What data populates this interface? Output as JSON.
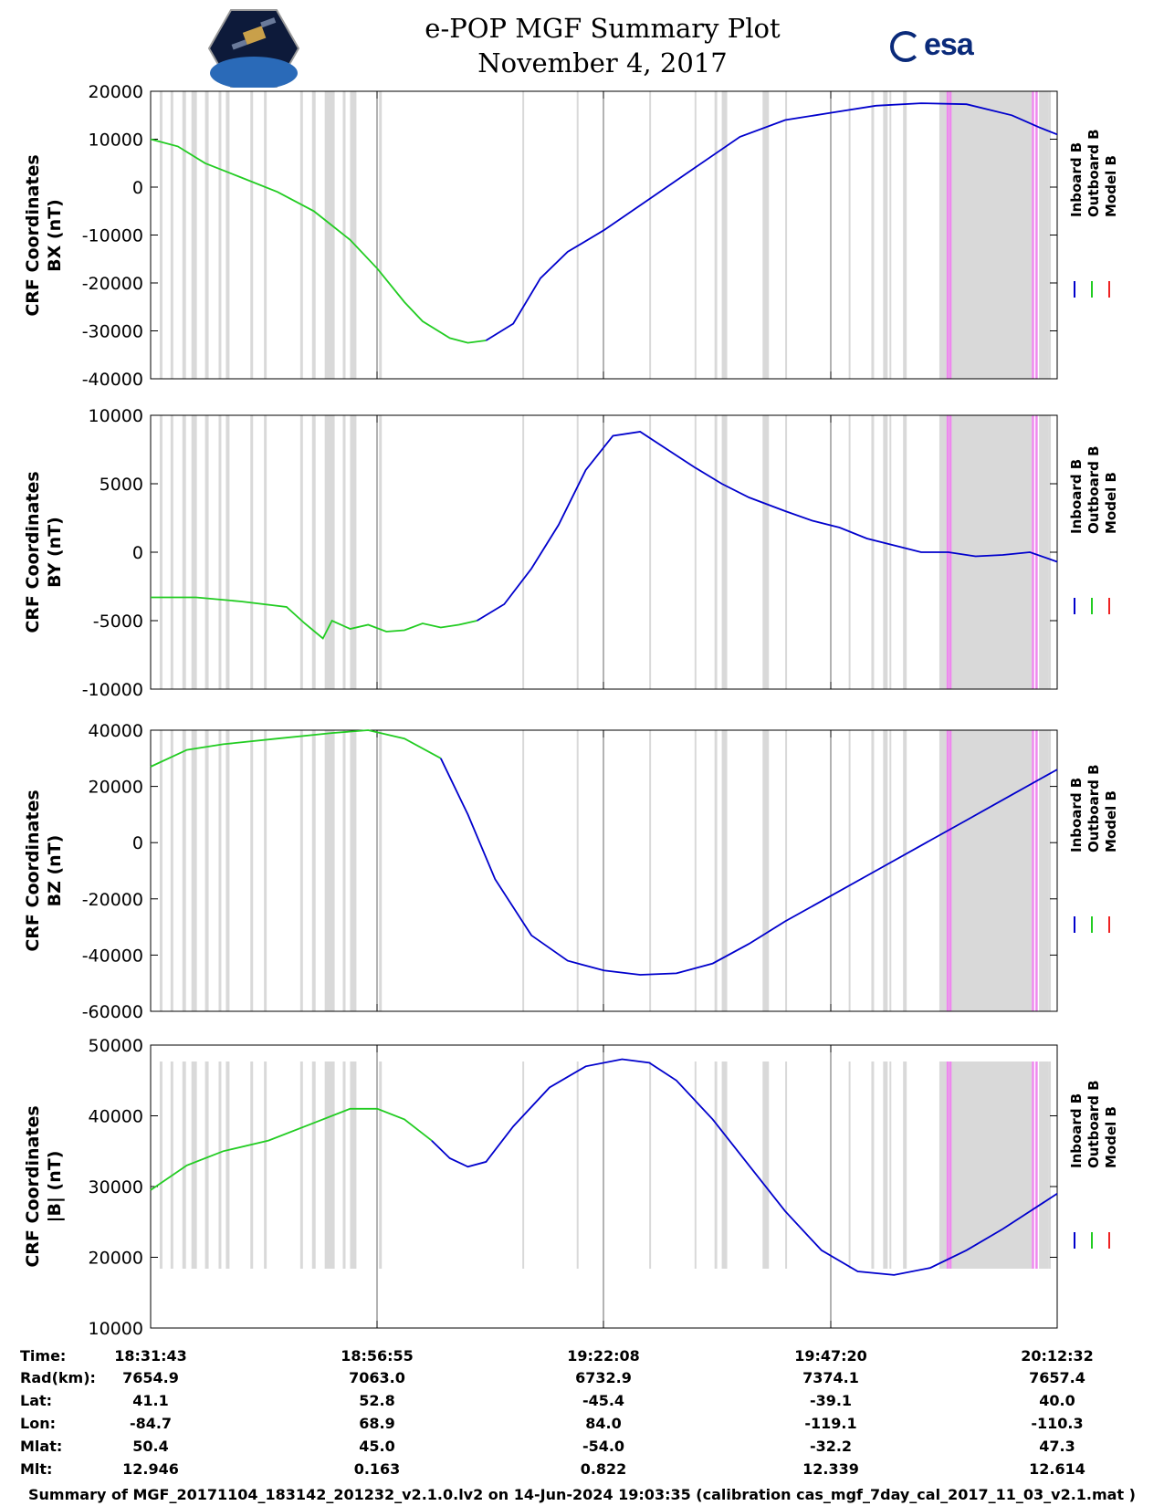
{
  "header": {
    "title": "e-POP MGF Summary Plot",
    "date": "November 4, 2017",
    "esa_logo_text": "esa"
  },
  "legend": {
    "entries": [
      "Inboard B",
      "Outboard B",
      "Model B"
    ],
    "colors": [
      "#0000cc",
      "#22cc22",
      "#ee2222"
    ]
  },
  "chart_data": [
    {
      "type": "line",
      "ylabel": [
        "CRF Coordinates",
        "BX (nT)"
      ],
      "ylim": [
        -40000,
        20000
      ],
      "yticks": [
        20000,
        10000,
        0,
        -10000,
        -20000,
        -30000,
        -40000
      ],
      "xlim": [
        0,
        100
      ],
      "series": [
        {
          "name": "Outboard B",
          "color": "#22cc22",
          "x": [
            0,
            3,
            6,
            10,
            14,
            18,
            20,
            22,
            25,
            28,
            30,
            33,
            35,
            37
          ],
          "y": [
            10000,
            8500,
            5000,
            2000,
            -1000,
            -5000,
            -8000,
            -11000,
            -17000,
            -24000,
            -28000,
            -31500,
            -32500,
            -32000
          ]
        },
        {
          "name": "Inboard B",
          "color": "#0000cc",
          "x": [
            37,
            40,
            43,
            46,
            50,
            55,
            60,
            65,
            70,
            75,
            80,
            85,
            90,
            95,
            98,
            100
          ],
          "y": [
            -32000,
            -28500,
            -19000,
            -13500,
            -9000,
            -2500,
            4000,
            10500,
            14000,
            15500,
            17000,
            17500,
            17300,
            15000,
            12500,
            11000
          ]
        }
      ]
    },
    {
      "type": "line",
      "ylabel": [
        "CRF Coordinates",
        "BY (nT)"
      ],
      "ylim": [
        -10000,
        10000
      ],
      "yticks": [
        10000,
        5000,
        0,
        -5000,
        -10000
      ],
      "xlim": [
        0,
        100
      ],
      "series": [
        {
          "name": "Outboard B",
          "color": "#22cc22",
          "x": [
            0,
            5,
            10,
            15,
            17,
            19,
            20,
            22,
            24,
            26,
            28,
            30,
            32,
            34,
            36
          ],
          "y": [
            -3300,
            -3300,
            -3600,
            -4000,
            -5200,
            -6300,
            -5000,
            -5600,
            -5300,
            -5800,
            -5700,
            -5200,
            -5500,
            -5300,
            -5000
          ]
        },
        {
          "name": "Inboard B",
          "color": "#0000cc",
          "x": [
            36,
            39,
            42,
            45,
            48,
            51,
            54,
            57,
            60,
            63,
            66,
            70,
            73,
            76,
            79,
            82,
            85,
            88,
            91,
            94,
            97,
            100
          ],
          "y": [
            -5000,
            -3800,
            -1200,
            2000,
            6000,
            8500,
            8800,
            7500,
            6200,
            5000,
            4000,
            3000,
            2300,
            1800,
            1000,
            500,
            0,
            0,
            -300,
            -200,
            0,
            -700
          ]
        }
      ]
    },
    {
      "type": "line",
      "ylabel": [
        "CRF Coordinates",
        "BZ (nT)"
      ],
      "ylim": [
        -60000,
        40000
      ],
      "yticks": [
        40000,
        20000,
        0,
        -20000,
        -40000,
        -60000
      ],
      "xlim": [
        0,
        100
      ],
      "series": [
        {
          "name": "Outboard B",
          "color": "#22cc22",
          "x": [
            0,
            4,
            8,
            14,
            20,
            24,
            28,
            32
          ],
          "y": [
            27000,
            33000,
            35000,
            37000,
            39000,
            40000,
            37000,
            30000
          ]
        },
        {
          "name": "Inboard B",
          "color": "#0000cc",
          "x": [
            32,
            35,
            38,
            42,
            46,
            50,
            54,
            58,
            62,
            66,
            70,
            75,
            80,
            85,
            90,
            95,
            100
          ],
          "y": [
            30000,
            10000,
            -13000,
            -33000,
            -42000,
            -45500,
            -47000,
            -46500,
            -43000,
            -36000,
            -28000,
            -19000,
            -10000,
            -1000,
            8000,
            17000,
            26000
          ]
        }
      ]
    },
    {
      "type": "line",
      "ylabel": [
        "CRF Coordinates",
        "|B| (nT)"
      ],
      "ylim": [
        10000,
        50000
      ],
      "yticks": [
        50000,
        40000,
        30000,
        20000,
        10000
      ],
      "xlim": [
        0,
        100
      ],
      "series": [
        {
          "name": "Outboard B",
          "color": "#22cc22",
          "x": [
            0,
            4,
            8,
            13,
            18,
            22,
            25,
            28,
            31
          ],
          "y": [
            29500,
            33000,
            35000,
            36500,
            39000,
            41000,
            41000,
            39500,
            36500
          ]
        },
        {
          "name": "Inboard B",
          "color": "#0000cc",
          "x": [
            31,
            33,
            35,
            37,
            40,
            44,
            48,
            52,
            55,
            58,
            62,
            66,
            70,
            74,
            78,
            82,
            86,
            90,
            94,
            97,
            100
          ],
          "y": [
            36500,
            34000,
            32800,
            33500,
            38500,
            44000,
            47000,
            48000,
            47500,
            45000,
            39500,
            33000,
            26500,
            21000,
            18000,
            17500,
            18500,
            21000,
            24000,
            26500,
            29000
          ]
        }
      ]
    }
  ],
  "ephemeris": {
    "labels": [
      "Time:",
      "Rad(km):",
      "Lat:",
      "Lon:",
      "Mlat:",
      "Mlt:"
    ],
    "columns": [
      {
        "time": "18:31:43",
        "rad": "7654.9",
        "lat": "41.1",
        "lon": "-84.7",
        "mlat": "50.4",
        "mlt": "12.946"
      },
      {
        "time": "18:56:55",
        "rad": "7063.0",
        "lat": "52.8",
        "lon": "68.9",
        "mlat": "45.0",
        "mlt": "0.163"
      },
      {
        "time": "19:22:08",
        "rad": "6732.9",
        "lat": "-45.4",
        "lon": "84.0",
        "mlat": "-54.0",
        "mlt": "0.822"
      },
      {
        "time": "19:47:20",
        "rad": "7374.1",
        "lat": "-39.1",
        "lon": "-119.1",
        "mlat": "-32.2",
        "mlt": "12.339"
      },
      {
        "time": "20:12:32",
        "rad": "7657.4",
        "lat": "40.0",
        "lon": "-110.3",
        "mlat": "47.3",
        "mlt": "12.614"
      }
    ]
  },
  "footer": "Summary of MGF_20171104_183142_201232_v2.1.0.lv2 on 14-Jun-2024 19:03:35 (calibration cas_mgf_7day_cal_2017_11_03_v2.1.mat )"
}
